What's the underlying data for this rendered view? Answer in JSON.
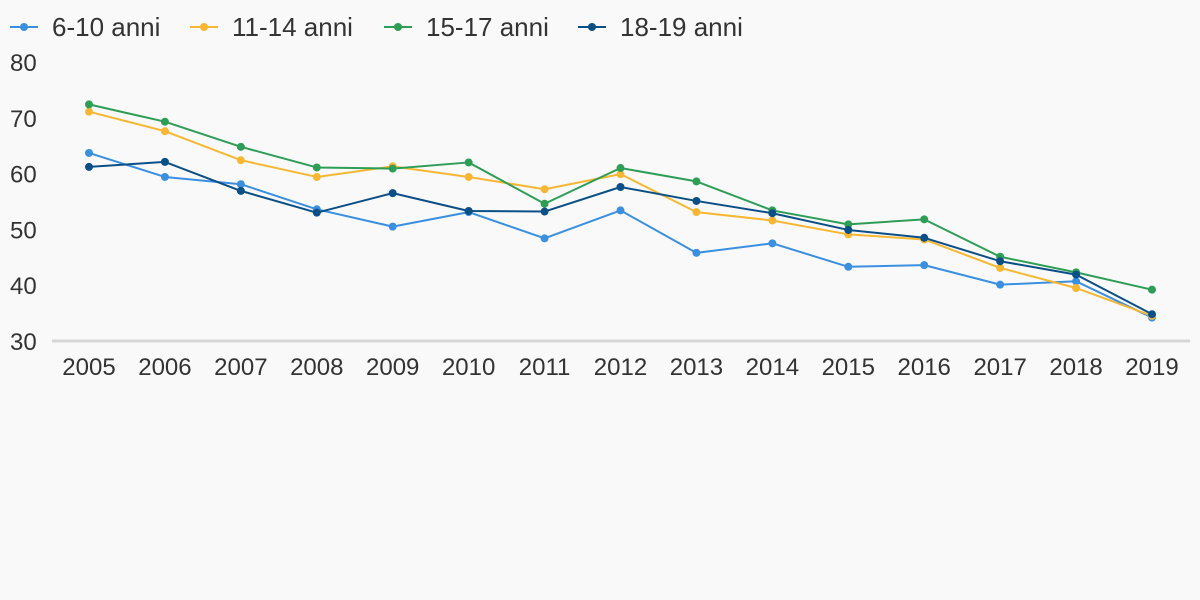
{
  "chart_data": {
    "type": "line",
    "x": [
      "2005",
      "2006",
      "2007",
      "2008",
      "2009",
      "2010",
      "2011",
      "2012",
      "2013",
      "2014",
      "2015",
      "2016",
      "2017",
      "2018",
      "2019"
    ],
    "ylim": [
      30,
      80
    ],
    "yticks": [
      30,
      40,
      50,
      60,
      70,
      80
    ],
    "grid": false,
    "legend_position": "top-left",
    "series": [
      {
        "name": "6-10 anni",
        "color": "#3a8fe0",
        "values": [
          63.7,
          59.4,
          58.1,
          53.6,
          50.5,
          53.1,
          48.4,
          53.4,
          45.8,
          47.5,
          43.3,
          43.6,
          40.1,
          40.7,
          34.2
        ]
      },
      {
        "name": "11-14 anni",
        "color": "#f7b733",
        "values": [
          71.1,
          67.6,
          62.4,
          59.4,
          61.3,
          59.4,
          57.2,
          59.9,
          53.1,
          51.6,
          49.1,
          48.2,
          43.1,
          39.5,
          34.5
        ]
      },
      {
        "name": "15-17 anni",
        "color": "#2e9e57",
        "values": [
          72.4,
          69.3,
          64.8,
          61.1,
          60.9,
          62.0,
          54.6,
          61.0,
          58.6,
          53.4,
          50.9,
          51.8,
          45.1,
          42.3,
          39.2
        ]
      },
      {
        "name": "18-19 anni",
        "color": "#0b4f87",
        "values": [
          61.2,
          62.1,
          56.9,
          53.0,
          56.5,
          53.3,
          53.2,
          57.6,
          55.1,
          52.9,
          49.9,
          48.5,
          44.3,
          41.9,
          34.8
        ]
      }
    ]
  }
}
